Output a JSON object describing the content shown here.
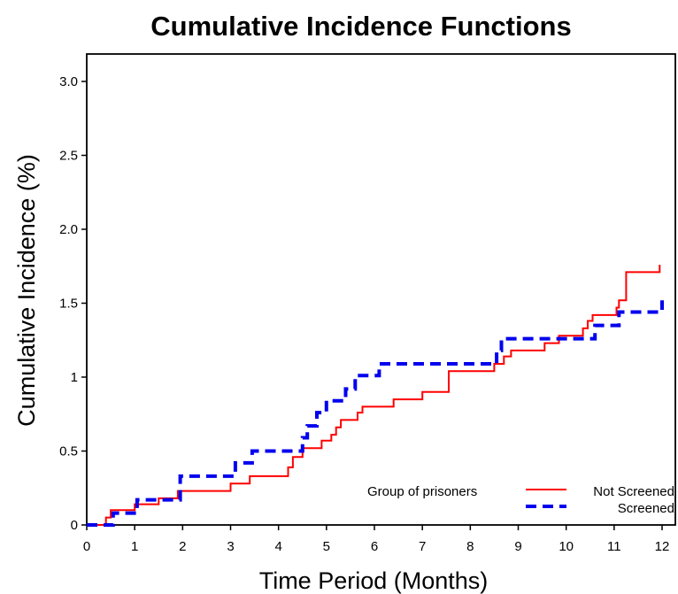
{
  "chart_data": {
    "type": "line",
    "title": "Cumulative Incidence Functions",
    "xlabel": "Time Period (Months)",
    "ylabel": "Cumulative Incidence (%)",
    "xlim": [
      0,
      12
    ],
    "ylim": [
      0,
      3.2
    ],
    "x_ticks": [
      "0",
      "1",
      "2",
      "3",
      "4",
      "5",
      "6",
      "7",
      "8",
      "9",
      "10",
      "11",
      "12"
    ],
    "y_ticks": [
      "0",
      "0.5",
      "1",
      "1.5",
      "2.0",
      "2.5",
      "3.0"
    ],
    "grid": false,
    "legend_position": "bottom-right",
    "legend_title": "Group of prisoners",
    "series": [
      {
        "name": "Not Screened",
        "color": "#ff0000",
        "style": "solid-step",
        "points": [
          [
            0,
            0
          ],
          [
            0.4,
            0
          ],
          [
            0.4,
            0.05
          ],
          [
            0.5,
            0.05
          ],
          [
            0.5,
            0.1
          ],
          [
            1.0,
            0.1
          ],
          [
            1.0,
            0.14
          ],
          [
            1.5,
            0.14
          ],
          [
            1.5,
            0.18
          ],
          [
            1.9,
            0.18
          ],
          [
            1.9,
            0.23
          ],
          [
            3.0,
            0.23
          ],
          [
            3.0,
            0.28
          ],
          [
            3.4,
            0.28
          ],
          [
            3.4,
            0.33
          ],
          [
            4.2,
            0.33
          ],
          [
            4.2,
            0.39
          ],
          [
            4.3,
            0.39
          ],
          [
            4.3,
            0.46
          ],
          [
            4.5,
            0.46
          ],
          [
            4.5,
            0.52
          ],
          [
            4.9,
            0.52
          ],
          [
            4.9,
            0.57
          ],
          [
            5.1,
            0.57
          ],
          [
            5.1,
            0.61
          ],
          [
            5.2,
            0.61
          ],
          [
            5.2,
            0.66
          ],
          [
            5.3,
            0.66
          ],
          [
            5.3,
            0.71
          ],
          [
            5.65,
            0.71
          ],
          [
            5.65,
            0.76
          ],
          [
            5.75,
            0.76
          ],
          [
            5.75,
            0.8
          ],
          [
            6.4,
            0.8
          ],
          [
            6.4,
            0.85
          ],
          [
            7.0,
            0.85
          ],
          [
            7.0,
            0.9
          ],
          [
            7.55,
            0.9
          ],
          [
            7.55,
            1.04
          ],
          [
            8.5,
            1.04
          ],
          [
            8.5,
            1.09
          ],
          [
            8.7,
            1.09
          ],
          [
            8.7,
            1.14
          ],
          [
            8.85,
            1.14
          ],
          [
            8.85,
            1.18
          ],
          [
            9.55,
            1.18
          ],
          [
            9.55,
            1.23
          ],
          [
            9.85,
            1.23
          ],
          [
            9.85,
            1.28
          ],
          [
            10.35,
            1.28
          ],
          [
            10.35,
            1.33
          ],
          [
            10.45,
            1.33
          ],
          [
            10.45,
            1.38
          ],
          [
            10.55,
            1.38
          ],
          [
            10.55,
            1.42
          ],
          [
            11.05,
            1.42
          ],
          [
            11.05,
            1.47
          ],
          [
            11.1,
            1.47
          ],
          [
            11.1,
            1.52
          ],
          [
            11.25,
            1.52
          ],
          [
            11.25,
            1.71
          ],
          [
            11.95,
            1.71
          ],
          [
            11.95,
            1.76
          ]
        ]
      },
      {
        "name": "Screened",
        "color": "#0000ee",
        "style": "dashed-step",
        "points": [
          [
            0,
            0
          ],
          [
            0.55,
            0
          ],
          [
            0.55,
            0.08
          ],
          [
            1.05,
            0.08
          ],
          [
            1.05,
            0.17
          ],
          [
            1.95,
            0.17
          ],
          [
            1.95,
            0.33
          ],
          [
            3.1,
            0.33
          ],
          [
            3.1,
            0.42
          ],
          [
            3.45,
            0.42
          ],
          [
            3.45,
            0.5
          ],
          [
            4.5,
            0.5
          ],
          [
            4.5,
            0.59
          ],
          [
            4.6,
            0.59
          ],
          [
            4.6,
            0.67
          ],
          [
            4.8,
            0.67
          ],
          [
            4.8,
            0.76
          ],
          [
            5.0,
            0.76
          ],
          [
            5.0,
            0.84
          ],
          [
            5.4,
            0.84
          ],
          [
            5.4,
            0.92
          ],
          [
            5.6,
            0.92
          ],
          [
            5.6,
            1.01
          ],
          [
            6.1,
            1.01
          ],
          [
            6.1,
            1.09
          ],
          [
            8.55,
            1.09
          ],
          [
            8.55,
            1.18
          ],
          [
            8.65,
            1.18
          ],
          [
            8.65,
            1.26
          ],
          [
            10.6,
            1.26
          ],
          [
            10.6,
            1.35
          ],
          [
            11.1,
            1.35
          ],
          [
            11.1,
            1.44
          ],
          [
            12.0,
            1.44
          ],
          [
            12.0,
            1.52
          ]
        ]
      }
    ]
  }
}
